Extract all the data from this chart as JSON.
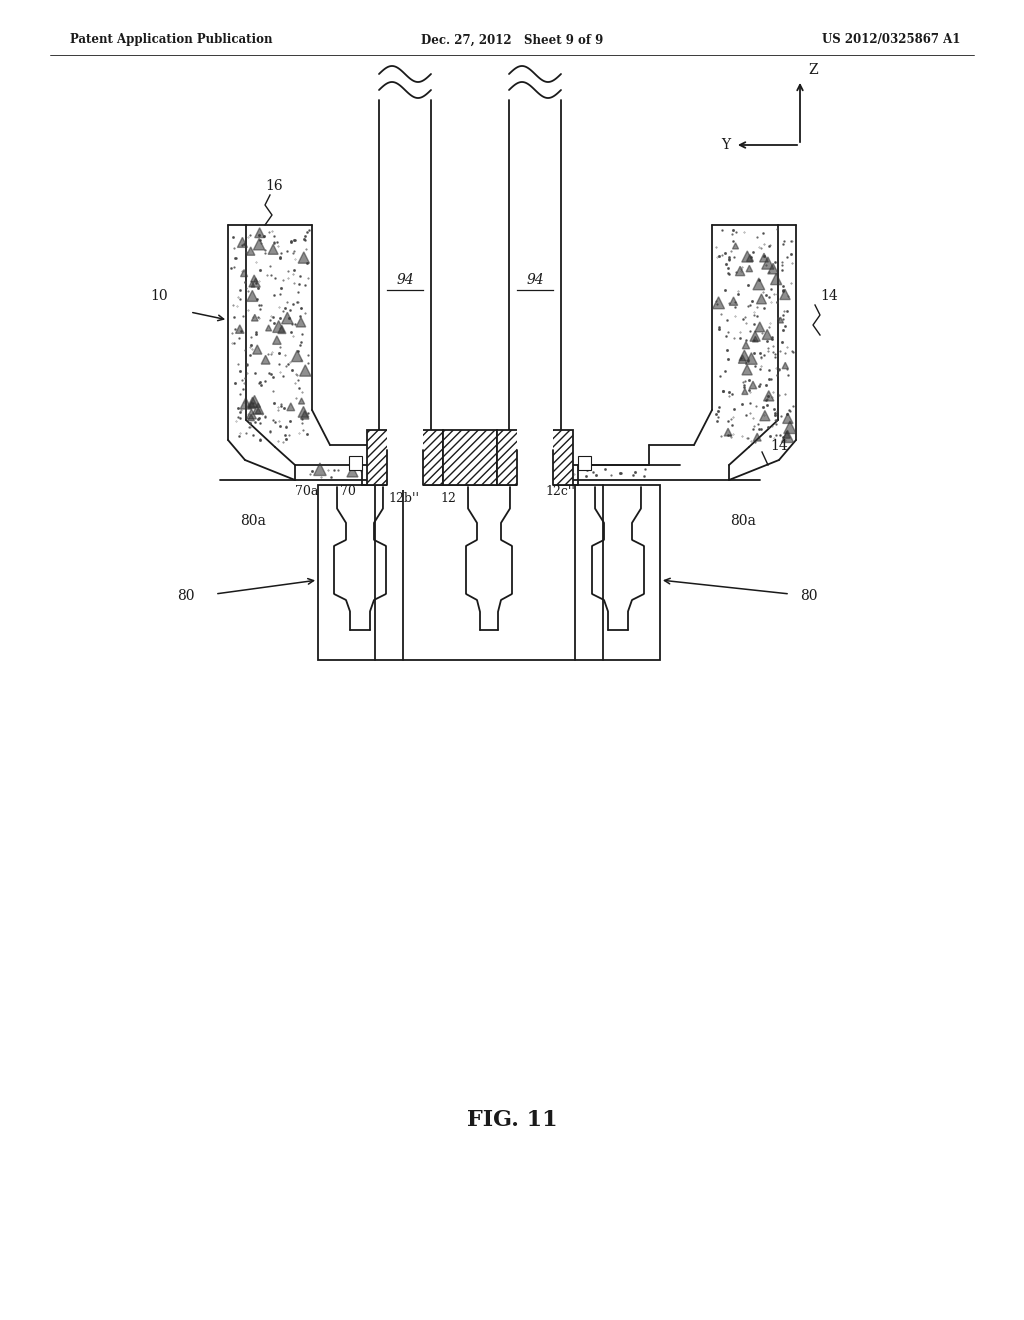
{
  "bg_color": "#ffffff",
  "line_color": "#1a1a1a",
  "header_left": "Patent Application Publication",
  "header_center": "Dec. 27, 2012   Sheet 9 of 9",
  "header_right": "US 2012/0325867 A1",
  "fig_label": "FIG. 11"
}
